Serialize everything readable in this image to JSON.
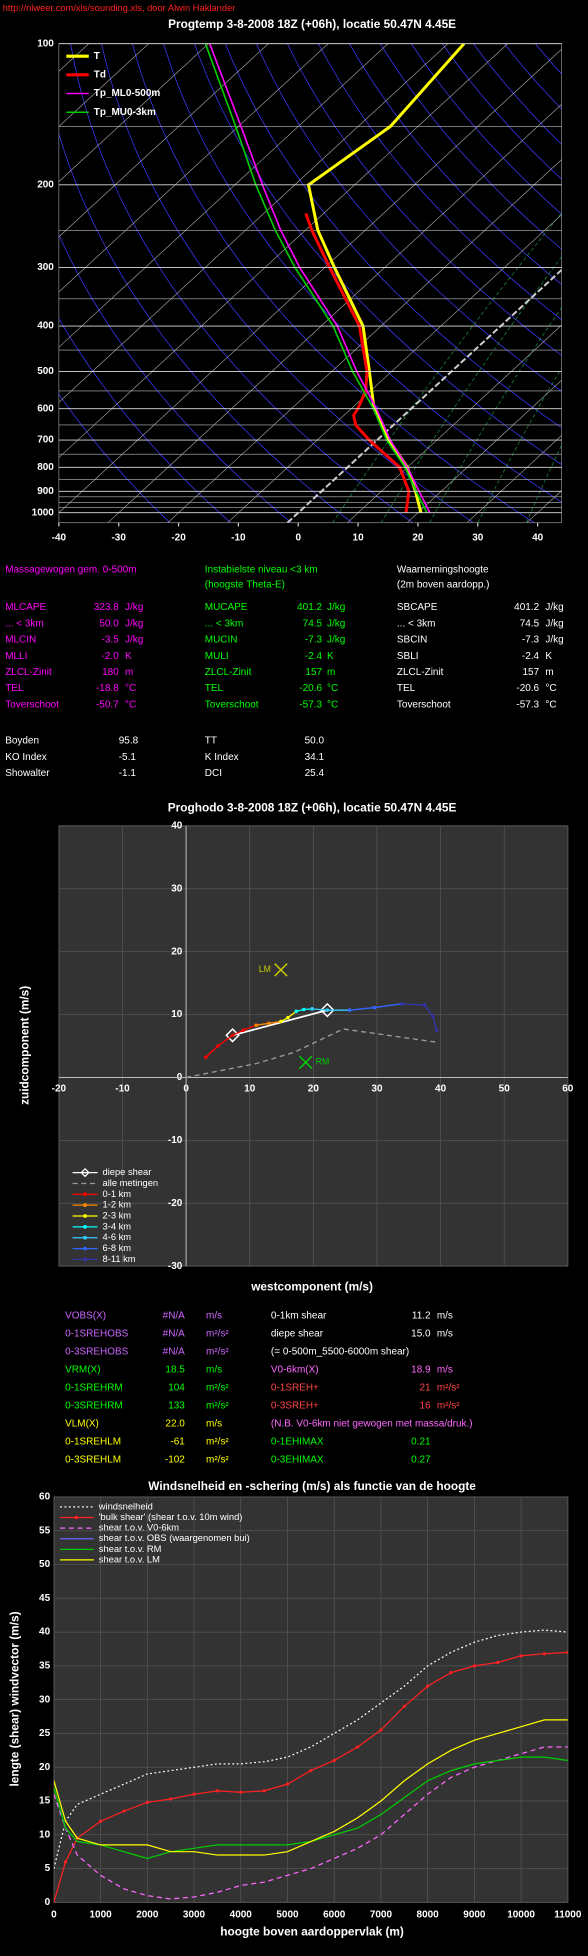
{
  "header": {
    "source": "http://nlweer.com/xls/sounding.xls, door Alwin Haklander"
  },
  "chart_data": [
    {
      "type": "skewt",
      "title": "Progtemp 3-8-2008 18Z (+06h), locatie 50.47N 4.45E",
      "xlim": [
        -40,
        44
      ],
      "xticks": [
        -40,
        -30,
        -20,
        -10,
        0,
        10,
        20,
        30,
        40
      ],
      "ylim": [
        100,
        1050
      ],
      "yticks": [
        100,
        200,
        300,
        400,
        500,
        600,
        700,
        800,
        900,
        1000
      ],
      "yscale": "log",
      "legend": "upper left",
      "series": [
        {
          "name": "T",
          "color": "#ffff00",
          "y": [
            1000,
            900,
            800,
            700,
            600,
            500,
            400,
            300,
            250,
            200,
            150,
            100
          ],
          "x": [
            20.5,
            15.7,
            10,
            2,
            -6.2,
            -13.7,
            -23,
            -38.4,
            -47.9,
            -57.7,
            -54.6,
            -57.3
          ]
        },
        {
          "name": "Td",
          "color": "#ff0000",
          "y": [
            1000,
            900,
            800,
            700,
            650,
            620,
            600,
            550,
            500,
            400,
            300,
            250,
            230
          ],
          "x": [
            18,
            14.6,
            8.7,
            -1.3,
            -6.3,
            -8.4,
            -8.9,
            -10.8,
            -14.1,
            -23.6,
            -39.2,
            -48.9,
            -53
          ]
        },
        {
          "name": "Tp_ML0-500m",
          "color": "#ff00ff",
          "y": [
            1000,
            900,
            800,
            700,
            600,
            500,
            400,
            300,
            250,
            200,
            150,
            100
          ],
          "x": [
            22,
            16.3,
            10,
            2.2,
            -5.8,
            -15.8,
            -27.3,
            -44.2,
            -54.1,
            -65.4,
            -79.6,
            -99.8
          ]
        },
        {
          "name": "Tp_MU0-3km",
          "color": "#00cc00",
          "y": [
            1000,
            900,
            800,
            700,
            600,
            500,
            400,
            300,
            250,
            200,
            150,
            100
          ],
          "x": [
            21.5,
            15.8,
            9.6,
            1.6,
            -6.3,
            -16.5,
            -28,
            -45,
            -55,
            -66.5,
            -80.5,
            -100.5
          ]
        }
      ]
    },
    {
      "type": "hodograph",
      "title": "Proghodo 3-8-2008 18Z (+06h), locatie 50.47N 4.45E",
      "xlabel": "westcomponent (m/s)",
      "ylabel": "zuidcomponent (m/s)",
      "xlim": [
        -20,
        60
      ],
      "xticks": [
        -20,
        -10,
        0,
        10,
        20,
        30,
        40,
        50,
        60
      ],
      "ylim": [
        -30,
        40
      ],
      "yticks": [
        -30,
        -20,
        -10,
        0,
        10,
        20,
        30,
        40
      ],
      "grid": true,
      "legend": "lower left",
      "series": [
        {
          "name": "diepe shear",
          "color": "#ffffff",
          "marker": "diamond",
          "x": [
            7.3,
            22.2
          ],
          "y": [
            6.7,
            10.7
          ]
        },
        {
          "name": "alle metingen",
          "color": "#999999",
          "dash": "dashed",
          "x": [
            0,
            11,
            17,
            24.7,
            39.4
          ],
          "y": [
            0,
            2.2,
            4,
            7.7,
            5.6
          ]
        },
        {
          "name": "0-1 km",
          "color": "#ff0000",
          "marker": "dot",
          "x": [
            3.1,
            5,
            7.3,
            9,
            11
          ],
          "y": [
            3.2,
            5,
            6.7,
            7.5,
            8.3
          ]
        },
        {
          "name": "1-2 km",
          "color": "#ff8800",
          "marker": "dot",
          "x": [
            11,
            13,
            14.9
          ],
          "y": [
            8.3,
            8.6,
            8.9
          ]
        },
        {
          "name": "2-3 km",
          "color": "#ffff00",
          "marker": "dot",
          "x": [
            14.9,
            16,
            17.3
          ],
          "y": [
            8.9,
            9.5,
            10.5
          ]
        },
        {
          "name": "3-4 km",
          "color": "#00ffff",
          "marker": "dot",
          "x": [
            17.3,
            18.5,
            19.8
          ],
          "y": [
            10.5,
            10.8,
            10.9
          ]
        },
        {
          "name": "4-6 km",
          "color": "#33ccff",
          "marker": "dot",
          "x": [
            19.8,
            22.2,
            25.7
          ],
          "y": [
            10.9,
            10.7,
            10.7
          ]
        },
        {
          "name": "6-8 km",
          "color": "#3366ff",
          "marker": "dot",
          "x": [
            25.7,
            29.6,
            33.9
          ],
          "y": [
            10.7,
            11.1,
            11.7
          ]
        },
        {
          "name": "8-11 km",
          "color": "#3333aa",
          "marker": "dot",
          "x": [
            33.9,
            37.5,
            38.8,
            39.4
          ],
          "y": [
            11.7,
            11.5,
            9.7,
            7.5
          ]
        }
      ],
      "points": [
        {
          "label": "LM",
          "color": "#cccc00",
          "x": 14.9,
          "y": 17.1
        },
        {
          "label": "RM",
          "color": "#00cc00",
          "x": 18.8,
          "y": 2.4
        }
      ]
    },
    {
      "type": "line",
      "title": "Windsnelheid en -schering (m/s) als functie van de hoogte",
      "xlabel": "hoogte boven aardoppervlak (m)",
      "ylabel": "lengte (shear) windvector (m/s)",
      "xlim": [
        0,
        11000
      ],
      "xticks": [
        0,
        1000,
        2000,
        3000,
        4000,
        5000,
        6000,
        7000,
        8000,
        9000,
        10000,
        11000
      ],
      "ylim": [
        0,
        60
      ],
      "yticks": [
        0,
        5,
        10,
        15,
        20,
        25,
        30,
        35,
        40,
        45,
        50,
        55,
        60
      ],
      "grid": true,
      "legend": "upper left",
      "x": [
        0,
        250,
        500,
        1000,
        1500,
        2000,
        2500,
        3000,
        3500,
        4000,
        4500,
        5000,
        5500,
        6000,
        6500,
        7000,
        7500,
        8000,
        8500,
        9000,
        9500,
        10000,
        10500,
        11000
      ],
      "series": [
        {
          "name": "windsnelheid",
          "color": "#ffffff",
          "dash": "dotted",
          "values": [
            5,
            12,
            14.5,
            16,
            17.5,
            19,
            19.5,
            20,
            20.5,
            20.5,
            20.8,
            21.5,
            23,
            25,
            27,
            29.5,
            32,
            35,
            37,
            38.5,
            39.5,
            40,
            40.3,
            40
          ]
        },
        {
          "name": "'bulk shear' (shear t.o.v. 10m wind)",
          "color": "#ff2020",
          "marker": "dot",
          "values": [
            0,
            6,
            9.5,
            12,
            13.5,
            14.8,
            15.3,
            16,
            16.5,
            16.3,
            16.5,
            17.5,
            19.5,
            21,
            23,
            25.5,
            29,
            32,
            34,
            35,
            35.5,
            36.5,
            36.8,
            37
          ]
        },
        {
          "name": "shear t.o.v. V0-6km",
          "color": "#ff66ff",
          "dash": "dashed",
          "values": [
            16,
            11,
            7,
            4,
            2,
            1,
            0.5,
            0.8,
            1.5,
            2.5,
            3,
            4,
            5,
            6.5,
            8,
            10,
            13,
            16,
            18.5,
            20,
            21,
            22,
            23,
            23
          ]
        },
        {
          "name": "shear t.o.v. OBS (waargenomen bui)",
          "color": "#6666ff",
          "values": [
            null,
            null,
            null,
            null,
            null,
            null,
            null,
            null,
            null,
            null,
            null,
            null,
            null,
            null,
            null,
            null,
            null,
            null,
            null,
            null,
            null,
            null,
            null,
            null
          ]
        },
        {
          "name": "shear t.o.v. RM",
          "color": "#00cc00",
          "values": [
            17,
            11,
            9,
            8.5,
            7.5,
            6.5,
            7.5,
            8,
            8.5,
            8.5,
            8.5,
            8.5,
            9,
            10,
            11,
            13,
            15.5,
            18,
            19.5,
            20.5,
            21,
            21.5,
            21.5,
            21
          ]
        },
        {
          "name": "shear t.o.v. LM",
          "color": "#ffff00",
          "values": [
            18,
            12,
            9.5,
            8.5,
            8.5,
            8.5,
            7.5,
            7.5,
            7,
            7,
            7,
            7.5,
            9,
            10.5,
            12.5,
            15,
            18,
            20.5,
            22.5,
            24,
            25,
            26,
            27,
            27
          ]
        }
      ]
    }
  ],
  "indices": {
    "columns": [
      {
        "color": "#ff00ff",
        "header": [
          "Massagewogen gem. 0-500m"
        ],
        "rows": [
          [
            "MLCAPE",
            "323.8",
            "J/kg"
          ],
          [
            "... < 3km",
            "50.0",
            "J/kg"
          ],
          [
            "MLCIN",
            "-3.5",
            "J/kg"
          ],
          [
            "MLLI",
            "-2.0",
            "K"
          ],
          [
            "ZLCL-Zinit",
            "180",
            "m"
          ],
          [
            "TEL",
            "-18.8",
            "°C"
          ],
          [
            "Toverschoot",
            "-50.7",
            "°C"
          ]
        ]
      },
      {
        "color": "#00ff00",
        "header": [
          "Instabielste niveau <3 km",
          "(hoogste Theta-E)"
        ],
        "rows": [
          [
            "MUCAPE",
            "401.2",
            "J/kg"
          ],
          [
            "... < 3km",
            "74.5",
            "J/kg"
          ],
          [
            "MUCIN",
            "-7.3",
            "J/kg"
          ],
          [
            "MULI",
            "-2.4",
            "K"
          ],
          [
            "ZLCL-Zinit",
            "157",
            "m"
          ],
          [
            "TEL",
            "-20.6",
            "°C"
          ],
          [
            "Toverschoot",
            "-57.3",
            "°C"
          ]
        ]
      },
      {
        "color": "#ffffff",
        "header": [
          "Waarnemingshoogte",
          "(2m boven aardopp.)"
        ],
        "rows": [
          [
            "SBCAPE",
            "401.2",
            "J/kg"
          ],
          [
            "... < 3km",
            "74.5",
            "J/kg"
          ],
          [
            "SBCIN",
            "-7.3",
            "J/kg"
          ],
          [
            "SBLI",
            "-2.4",
            "K"
          ],
          [
            "ZLCL-Zinit",
            "157",
            "m"
          ],
          [
            "TEL",
            "-20.6",
            "°C"
          ],
          [
            "Toverschoot",
            "-57.3",
            "°C"
          ]
        ]
      }
    ],
    "extra": [
      [
        "Boyden",
        "95.8",
        "TT",
        "50.0"
      ],
      [
        "KO Index",
        "-5.1",
        "K Index",
        "34.1"
      ],
      [
        "Showalter",
        "-1.1",
        "DCI",
        "25.4"
      ]
    ]
  },
  "hodo_table": [
    {
      "left_color": "#cc66ff",
      "left": [
        "VOBS(X)",
        "#N/A",
        "m/s"
      ],
      "right_color": "#ffffff",
      "right": [
        "0-1km shear",
        "11.2",
        "m/s"
      ]
    },
    {
      "left_color": "#cc66ff",
      "left": [
        "0-1SREHOBS",
        "#N/A",
        "m²/s²"
      ],
      "right_color": "#ffffff",
      "right": [
        "diepe shear",
        "15.0",
        "m/s"
      ]
    },
    {
      "left_color": "#cc66ff",
      "left": [
        "0-3SREHOBS",
        "#N/A",
        "m²/s²"
      ],
      "right_color": "#ffffff",
      "right": [
        "(= 0-500m_5500-6000m shear)"
      ]
    },
    {
      "left_color": "#00ff00",
      "left": [
        "VRM(X)",
        "18.5",
        "m/s"
      ],
      "right_color": "#ff66ff",
      "right": [
        "V0-6km(X)",
        "18.9",
        "m/s"
      ]
    },
    {
      "left_color": "#00ff00",
      "left": [
        "0-1SREHRM",
        "104",
        "m²/s²"
      ],
      "right_color": "#ff4444",
      "right": [
        "0-1SREH+",
        "21",
        "m²/s²"
      ]
    },
    {
      "left_color": "#00ff00",
      "left": [
        "0-3SREHRM",
        "133",
        "m²/s²"
      ],
      "right_color": "#ff4444",
      "right": [
        "0-3SREH+",
        "16",
        "m²/s²"
      ]
    },
    {
      "left_color": "#ffff00",
      "left": [
        "VLM(X)",
        "22.0",
        "m/s"
      ],
      "right_color": "#ff66ff",
      "right": [
        "(N.B. V0-6km niet gewogen met massa/druk.)"
      ]
    },
    {
      "left_color": "#ffff00",
      "left": [
        "0-1SREHLM",
        "-61",
        "m²/s²"
      ],
      "right_color": "#00ff00",
      "right": [
        "0-1EHIMAX",
        "0.21"
      ]
    },
    {
      "left_color": "#ffff00",
      "left": [
        "0-3SREHLM",
        "-102",
        "m²/s²"
      ],
      "right_color": "#00ff00",
      "right": [
        "0-3EHIMAX",
        "0.27"
      ]
    }
  ]
}
